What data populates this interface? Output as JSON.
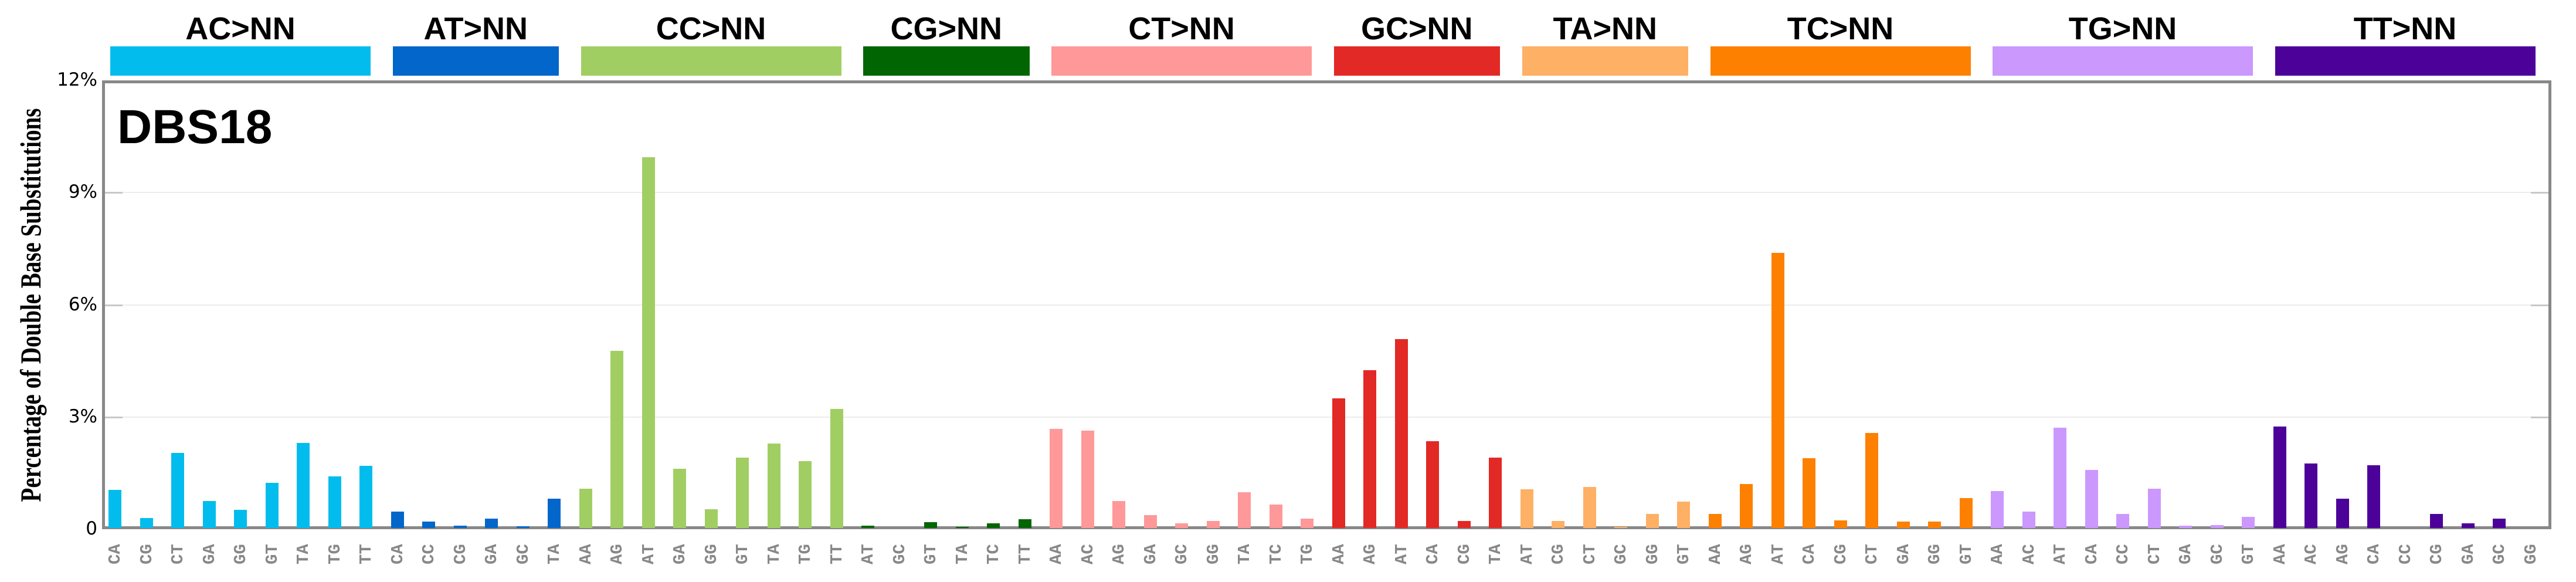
{
  "chart_data": {
    "type": "bar",
    "title": "DBS18",
    "ylabel": "Percentage of Double Base Substitutions",
    "xlabel": "",
    "ylim": [
      0,
      12
    ],
    "yticks": [
      0,
      3,
      6,
      9,
      12
    ],
    "ytick_labels": [
      "0",
      "3%",
      "6%",
      "9%",
      "12%"
    ],
    "grid": true,
    "legend": null,
    "groups": [
      {
        "name": "AC>NN",
        "color": "#03BCEE",
        "categories": [
          "CA",
          "CG",
          "CT",
          "GA",
          "GG",
          "GT",
          "TA",
          "TG",
          "TT"
        ],
        "values": [
          1.02,
          0.27,
          2.01,
          0.72,
          0.49,
          1.21,
          2.28,
          1.38,
          1.67
        ]
      },
      {
        "name": "AT>NN",
        "color": "#0266CA",
        "categories": [
          "CA",
          "CC",
          "CG",
          "GA",
          "GC",
          "TA"
        ],
        "values": [
          0.44,
          0.18,
          0.06,
          0.25,
          0.04,
          0.79
        ]
      },
      {
        "name": "CC>NN",
        "color": "#A1CE63",
        "categories": [
          "AA",
          "AG",
          "AT",
          "GA",
          "GG",
          "GT",
          "TA",
          "TG",
          "TT"
        ],
        "values": [
          1.05,
          4.74,
          9.91,
          1.59,
          0.5,
          1.88,
          2.26,
          1.79,
          3.19
        ]
      },
      {
        "name": "CG>NN",
        "color": "#016501",
        "categories": [
          "AT",
          "GC",
          "GT",
          "TA",
          "TC",
          "TT"
        ],
        "values": [
          0.07,
          0.0,
          0.16,
          0.03,
          0.12,
          0.24
        ]
      },
      {
        "name": "CT>NN",
        "color": "#FF9898",
        "categories": [
          "AA",
          "AC",
          "AG",
          "GA",
          "GC",
          "GG",
          "TA",
          "TC",
          "TG"
        ],
        "values": [
          2.65,
          2.61,
          0.72,
          0.35,
          0.12,
          0.19,
          0.95,
          0.63,
          0.25
        ]
      },
      {
        "name": "GC>NN",
        "color": "#E22925",
        "categories": [
          "AA",
          "AG",
          "AT",
          "CA",
          "CG",
          "TA"
        ],
        "values": [
          3.47,
          4.22,
          5.05,
          2.32,
          0.19,
          1.88
        ]
      },
      {
        "name": "TA>NN",
        "color": "#FEB065",
        "categories": [
          "AT",
          "CG",
          "CT",
          "GC",
          "GG",
          "GT"
        ],
        "values": [
          1.04,
          0.19,
          1.1,
          0.03,
          0.37,
          0.7
        ]
      },
      {
        "name": "TC>NN",
        "color": "#FD8000",
        "categories": [
          "AA",
          "AG",
          "AT",
          "CA",
          "CG",
          "CT",
          "GA",
          "GG",
          "GT"
        ],
        "values": [
          0.37,
          1.18,
          7.35,
          1.87,
          0.21,
          2.54,
          0.18,
          0.18,
          0.8
        ]
      },
      {
        "name": "TG>NN",
        "color": "#CB98FD",
        "categories": [
          "AA",
          "AC",
          "AT",
          "CA",
          "CC",
          "CT",
          "GA",
          "GC",
          "GT"
        ],
        "values": [
          0.99,
          0.44,
          2.69,
          1.55,
          0.37,
          1.05,
          0.06,
          0.08,
          0.3
        ]
      },
      {
        "name": "TT>NN",
        "color": "#4C0199",
        "categories": [
          "AA",
          "AC",
          "AG",
          "CA",
          "CC",
          "CG",
          "GA",
          "GC",
          "GG"
        ],
        "values": [
          2.71,
          1.73,
          0.79,
          1.68,
          0.0,
          0.38,
          0.13,
          0.25,
          0.0
        ]
      }
    ]
  },
  "layout_colors": {
    "frame": "#888888",
    "xlabel": "#888888",
    "grid": "#ececec"
  }
}
